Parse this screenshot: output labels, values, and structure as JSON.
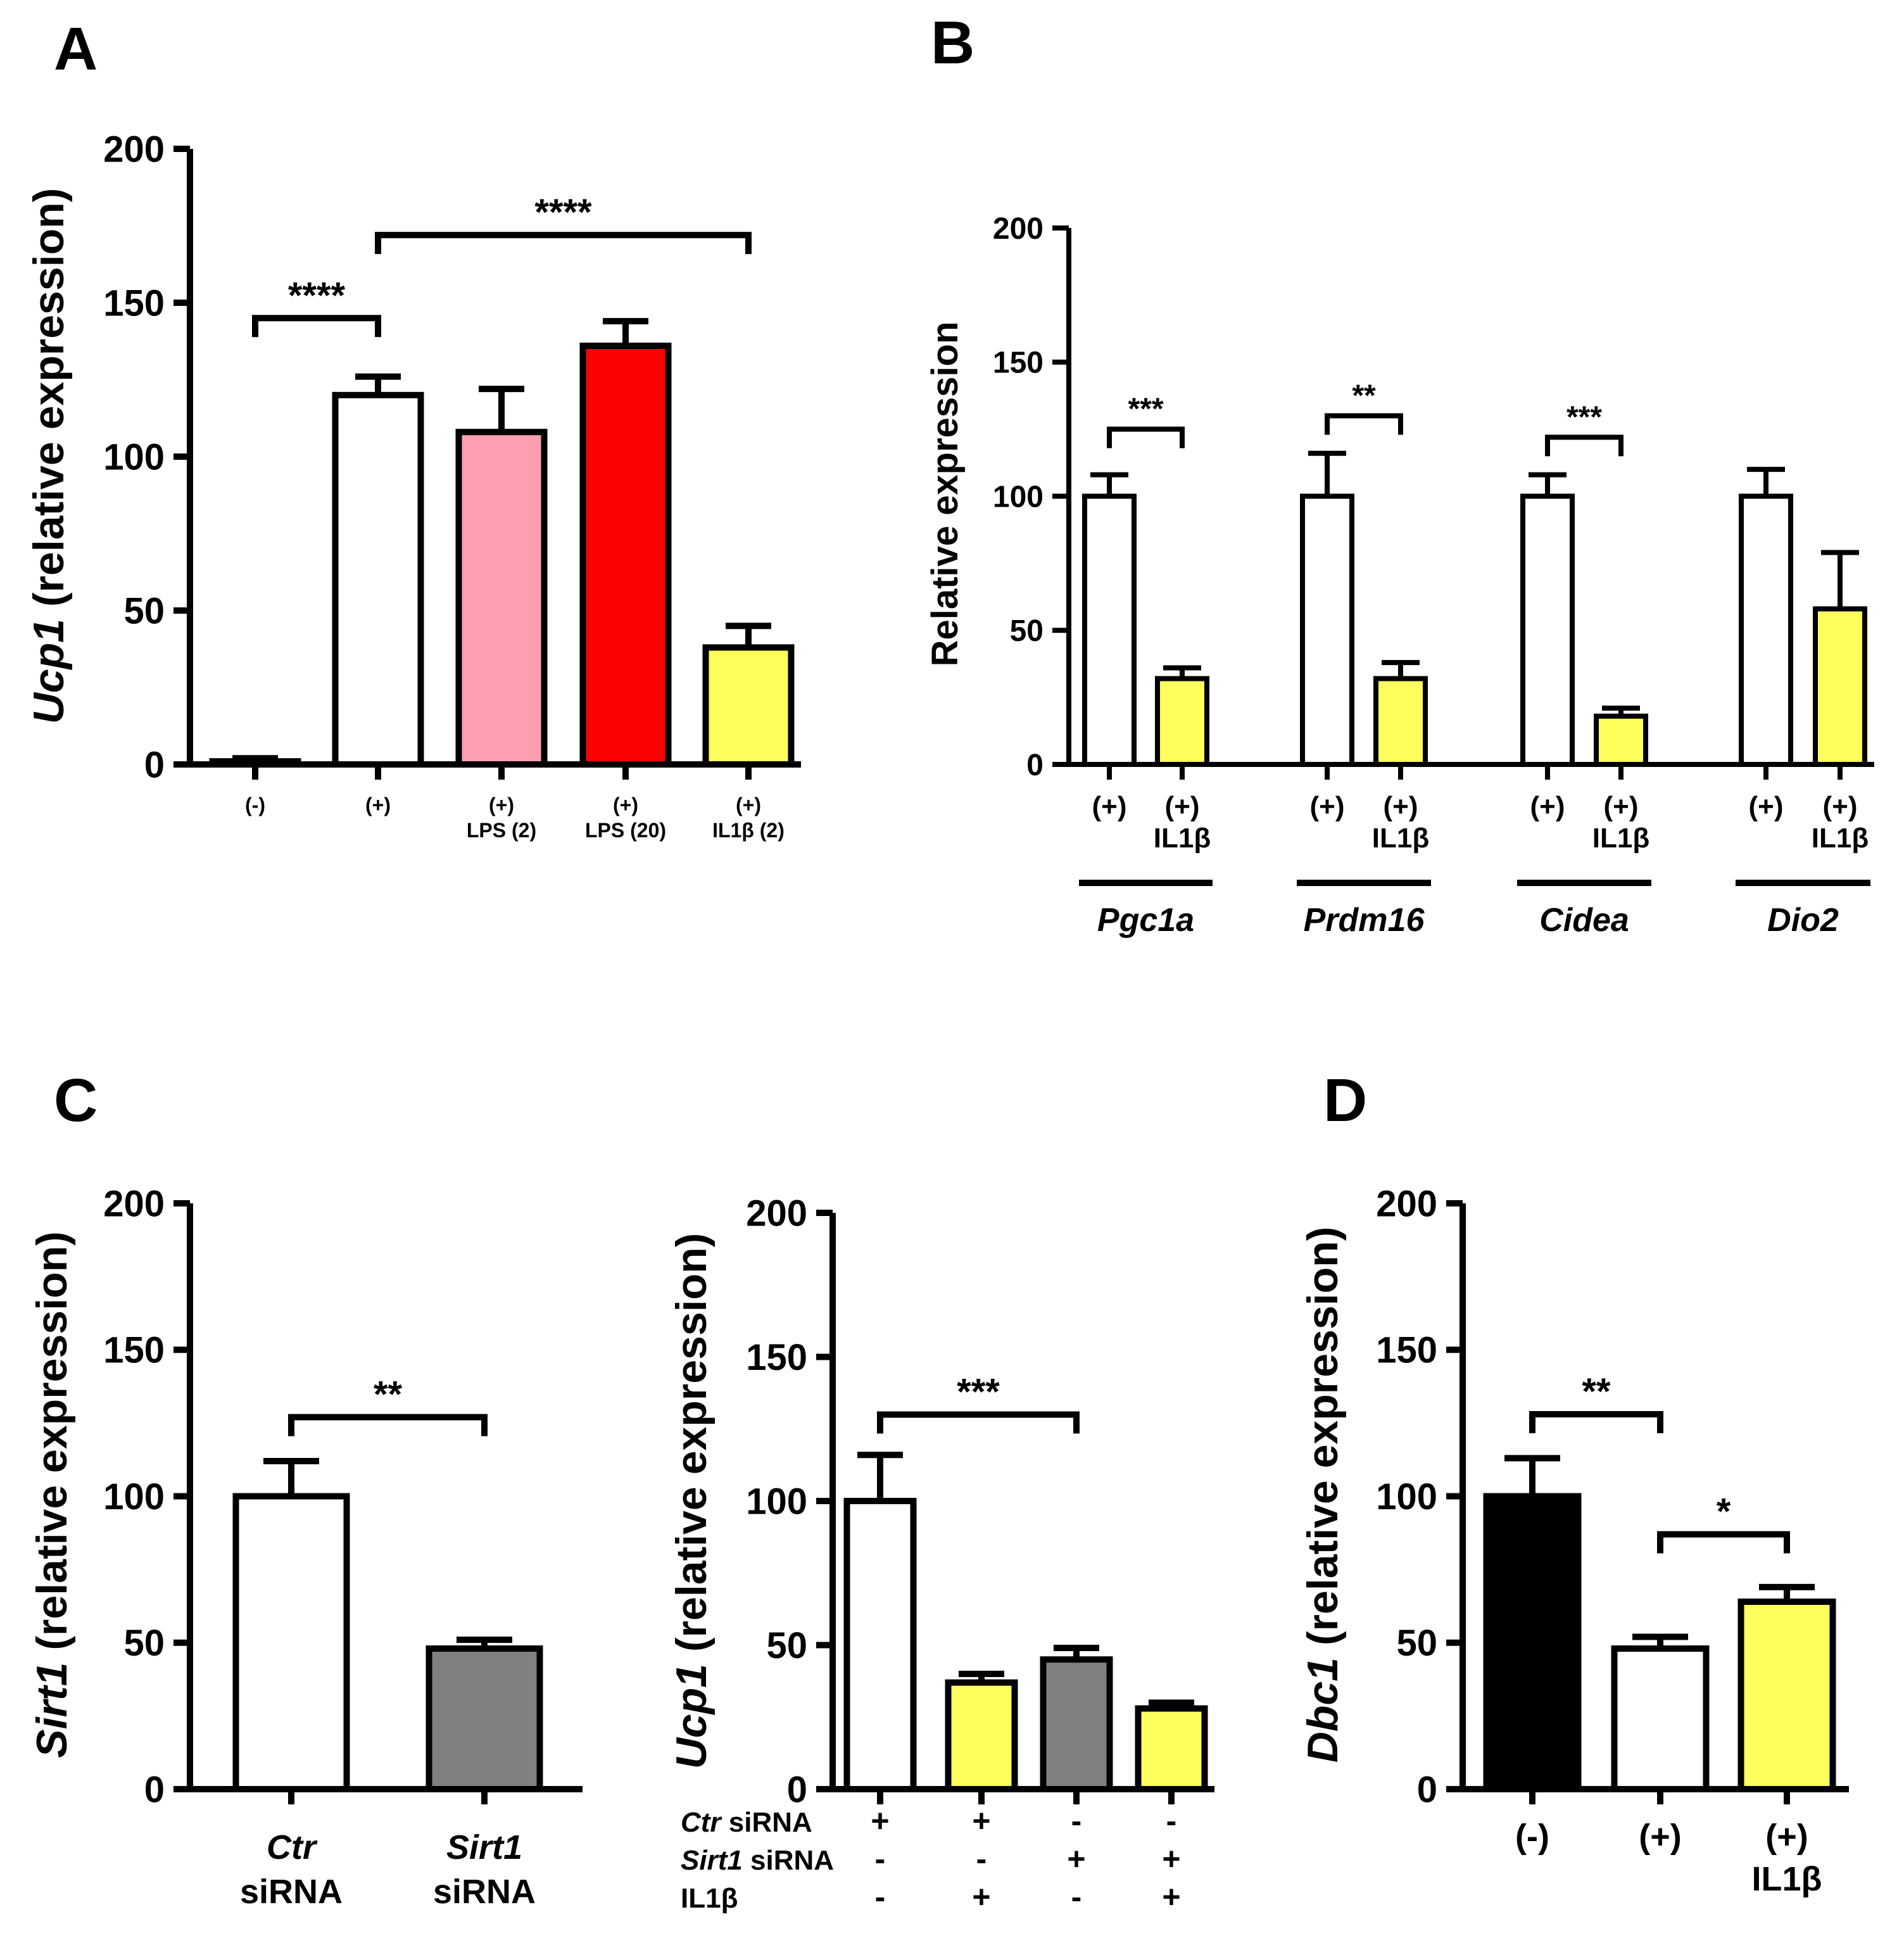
{
  "colors": {
    "white": "#ffffff",
    "pink": "#fd9fb0",
    "red": "#fd0000",
    "yellow": "#fdfd5b",
    "gray": "#808080",
    "black": "#000000"
  },
  "chart_data": [
    {
      "panel": "A",
      "type": "bar",
      "ylabel_gene": "Ucp1",
      "ylabel_rest": " (relative expression)",
      "ylim": [
        0,
        200
      ],
      "yticks": [
        "0",
        "50",
        "100",
        "150",
        "200"
      ],
      "bars": [
        {
          "label1": "(-)",
          "label2": "",
          "value": 1,
          "err": 1,
          "color": "white"
        },
        {
          "label1": "(+)",
          "label2": "",
          "value": 120,
          "err": 6,
          "color": "white"
        },
        {
          "label1": "(+)",
          "label2": "LPS (2)",
          "value": 108,
          "err": 14,
          "color": "pink"
        },
        {
          "label1": "(+)",
          "label2": "LPS (20)",
          "value": 136,
          "err": 8,
          "color": "red"
        },
        {
          "label1": "(+)",
          "label2": "IL1β (2)",
          "value": 38,
          "err": 7,
          "color": "yellow"
        }
      ],
      "significance": [
        {
          "from": 0,
          "to": 1,
          "level": 145,
          "label": "****"
        },
        {
          "from": 1,
          "to": 4,
          "level": 172,
          "label": "****"
        }
      ]
    },
    {
      "panel": "B",
      "type": "bar",
      "ylabel": "Relative expression",
      "ylim": [
        0,
        200
      ],
      "yticks": [
        "0",
        "50",
        "100",
        "150",
        "200"
      ],
      "bars": [
        {
          "label1": "(+)",
          "label2": "",
          "value": 100,
          "err": 8,
          "color": "white"
        },
        {
          "label1": "(+)",
          "label2": "IL1β",
          "value": 32,
          "err": 4,
          "color": "yellow"
        },
        {
          "label1": "(+)",
          "label2": "",
          "value": 100,
          "err": 16,
          "color": "white"
        },
        {
          "label1": "(+)",
          "label2": "IL1β",
          "value": 32,
          "err": 6,
          "color": "yellow"
        },
        {
          "label1": "(+)",
          "label2": "",
          "value": 100,
          "err": 8,
          "color": "white"
        },
        {
          "label1": "(+)",
          "label2": "IL1β",
          "value": 18,
          "err": 3,
          "color": "yellow"
        },
        {
          "label1": "(+)",
          "label2": "",
          "value": 100,
          "err": 10,
          "color": "white"
        },
        {
          "label1": "(+)",
          "label2": "IL1β",
          "value": 58,
          "err": 21,
          "color": "yellow"
        }
      ],
      "genes": [
        "Pgc1a",
        "Prdm16",
        "Cidea",
        "Dio2"
      ],
      "significance": [
        {
          "from": 0,
          "to": 1,
          "level": 125,
          "label": "***"
        },
        {
          "from": 2,
          "to": 3,
          "level": 130,
          "label": "**"
        },
        {
          "from": 4,
          "to": 5,
          "level": 122,
          "label": "***"
        }
      ]
    },
    {
      "panel": "C",
      "type": "bar",
      "ylabel_gene": "Sirt1",
      "ylabel_rest": " (relative expression)",
      "ylim": [
        0,
        200
      ],
      "yticks": [
        "0",
        "50",
        "100",
        "150",
        "200"
      ],
      "bars": [
        {
          "label1": "Ctr",
          "label2": "siRNA",
          "value": 100,
          "err": 12,
          "color": "white"
        },
        {
          "label1": "Sirt1",
          "label2": "siRNA",
          "value": 48,
          "err": 3,
          "color": "gray"
        }
      ],
      "significance": [
        {
          "from": 0,
          "to": 1,
          "level": 127,
          "label": "**"
        }
      ]
    },
    {
      "panel": "C2",
      "type": "bar",
      "ylabel_gene": "Ucp1",
      "ylabel_rest": " (relative expression)",
      "ylim": [
        0,
        200
      ],
      "yticks": [
        "0",
        "50",
        "100",
        "150",
        "200"
      ],
      "bars": [
        {
          "value": 100,
          "err": 16,
          "color": "white"
        },
        {
          "value": 37,
          "err": 3,
          "color": "yellow"
        },
        {
          "value": 45,
          "err": 4,
          "color": "gray"
        },
        {
          "value": 28,
          "err": 2,
          "color": "yellow"
        }
      ],
      "conditions": [
        {
          "gene": "Ctr",
          "suffix": " siRNA",
          "signs": [
            "+",
            "+",
            "-",
            "-"
          ]
        },
        {
          "gene": "Sirt1",
          "suffix": " siRNA",
          "signs": [
            "-",
            "-",
            "+",
            "+"
          ]
        },
        {
          "gene": "",
          "suffix": "IL1β",
          "signs": [
            "-",
            "+",
            "-",
            "+"
          ]
        }
      ],
      "significance": [
        {
          "from": 0,
          "to": 2,
          "level": 130,
          "label": "***"
        }
      ]
    },
    {
      "panel": "D",
      "type": "bar",
      "ylabel_gene": "Dbc1",
      "ylabel_rest": " (relative expression)",
      "ylim": [
        0,
        200
      ],
      "yticks": [
        "0",
        "50",
        "100",
        "150",
        "200"
      ],
      "bars": [
        {
          "label1": "(-)",
          "label2": "",
          "value": 100,
          "err": 13,
          "color": "black"
        },
        {
          "label1": "(+)",
          "label2": "",
          "value": 48,
          "err": 4,
          "color": "white"
        },
        {
          "label1": "(+)",
          "label2": "IL1β",
          "value": 64,
          "err": 5,
          "color": "yellow"
        }
      ],
      "significance": [
        {
          "from": 0,
          "to": 1,
          "level": 128,
          "label": "**"
        },
        {
          "from": 1,
          "to": 2,
          "level": 87,
          "label": "*"
        }
      ]
    }
  ]
}
